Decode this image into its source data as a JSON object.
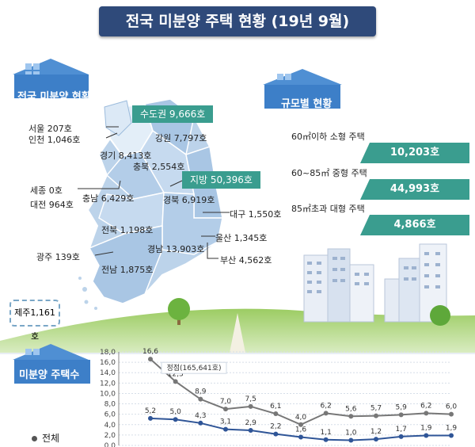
{
  "title": "전국 미분양 주택 현황 (19년 9월)",
  "sections": {
    "national": "전국 미분양 현황",
    "by_size": "규모별 현황",
    "count": "미분양 주택수"
  },
  "areas": {
    "capital": "수도권 9,666호",
    "local": "지방 50,396호"
  },
  "regions": {
    "seoul": "서울   207호",
    "incheon": "인천 1,046호",
    "gyeonggi": "경기 8,413호",
    "gangwon": "강원 7,797호",
    "chungbuk": "충북 2,554호",
    "sejong": "세종 0호",
    "chungnam": "충남 6,429호",
    "daejeon": "대전 964호",
    "gyeongbuk": "경북 6,919호",
    "daegu": "대구 1,550호",
    "jeonbuk": "전북 1,198호",
    "ulsan": "울산 1,345호",
    "gwangju": "광주 139호",
    "gyeongnam": "경남 13,903호",
    "busan": "부산 4,562호",
    "jeonnam": "전남 1,875호",
    "jeju": "제주1,161호"
  },
  "sizes": [
    {
      "label": "60㎡이하 소형 주택",
      "value": "10,203호"
    },
    {
      "label": "60~85㎡ 중형 주택",
      "value": "44,993호"
    },
    {
      "label": "85㎡초과 대형 주택",
      "value": "4,866호"
    }
  ],
  "legend_total": "전체",
  "peak_label": "정점(165,641호)",
  "colors": {
    "navy": "#2f4a7a",
    "teal": "#3a9d8f",
    "map_blue": "#bcd3ea",
    "capital_blue": "#cfe0f2",
    "series_total": "#777777",
    "series_second": "#2f5597"
  },
  "chart_data": {
    "type": "line",
    "ylim": [
      0,
      18
    ],
    "y_ticks": [
      "18,0",
      "16,0",
      "14,0",
      "12,0",
      "10,0",
      "8,0",
      "6,0",
      "4,0",
      "2,0",
      "0,0"
    ],
    "grid": true,
    "series": [
      {
        "name": "전체",
        "values": [
          16.6,
          12.3,
          8.9,
          7.0,
          7.5,
          6.1,
          4.0,
          6.2,
          5.6,
          5.7,
          5.9,
          6.2,
          6.0
        ],
        "labels": [
          "16,6",
          "12,3",
          "8,9",
          "7,0",
          "7,5",
          "6,1",
          "4,0",
          "6,2",
          "5,6",
          "5,7",
          "5,9",
          "6,2",
          "6,0"
        ]
      },
      {
        "values": [
          5.2,
          5.0,
          4.3,
          3.1,
          2.9,
          2.2,
          1.6,
          1.1,
          1.0,
          1.2,
          1.7,
          1.9,
          1.9
        ],
        "labels": [
          "5,2",
          "5,0",
          "4,3",
          "3,1",
          "2,9",
          "2,2",
          "1,6",
          "1,1",
          "1,0",
          "1,2",
          "1,7",
          "1,9",
          "1,9"
        ]
      }
    ]
  }
}
